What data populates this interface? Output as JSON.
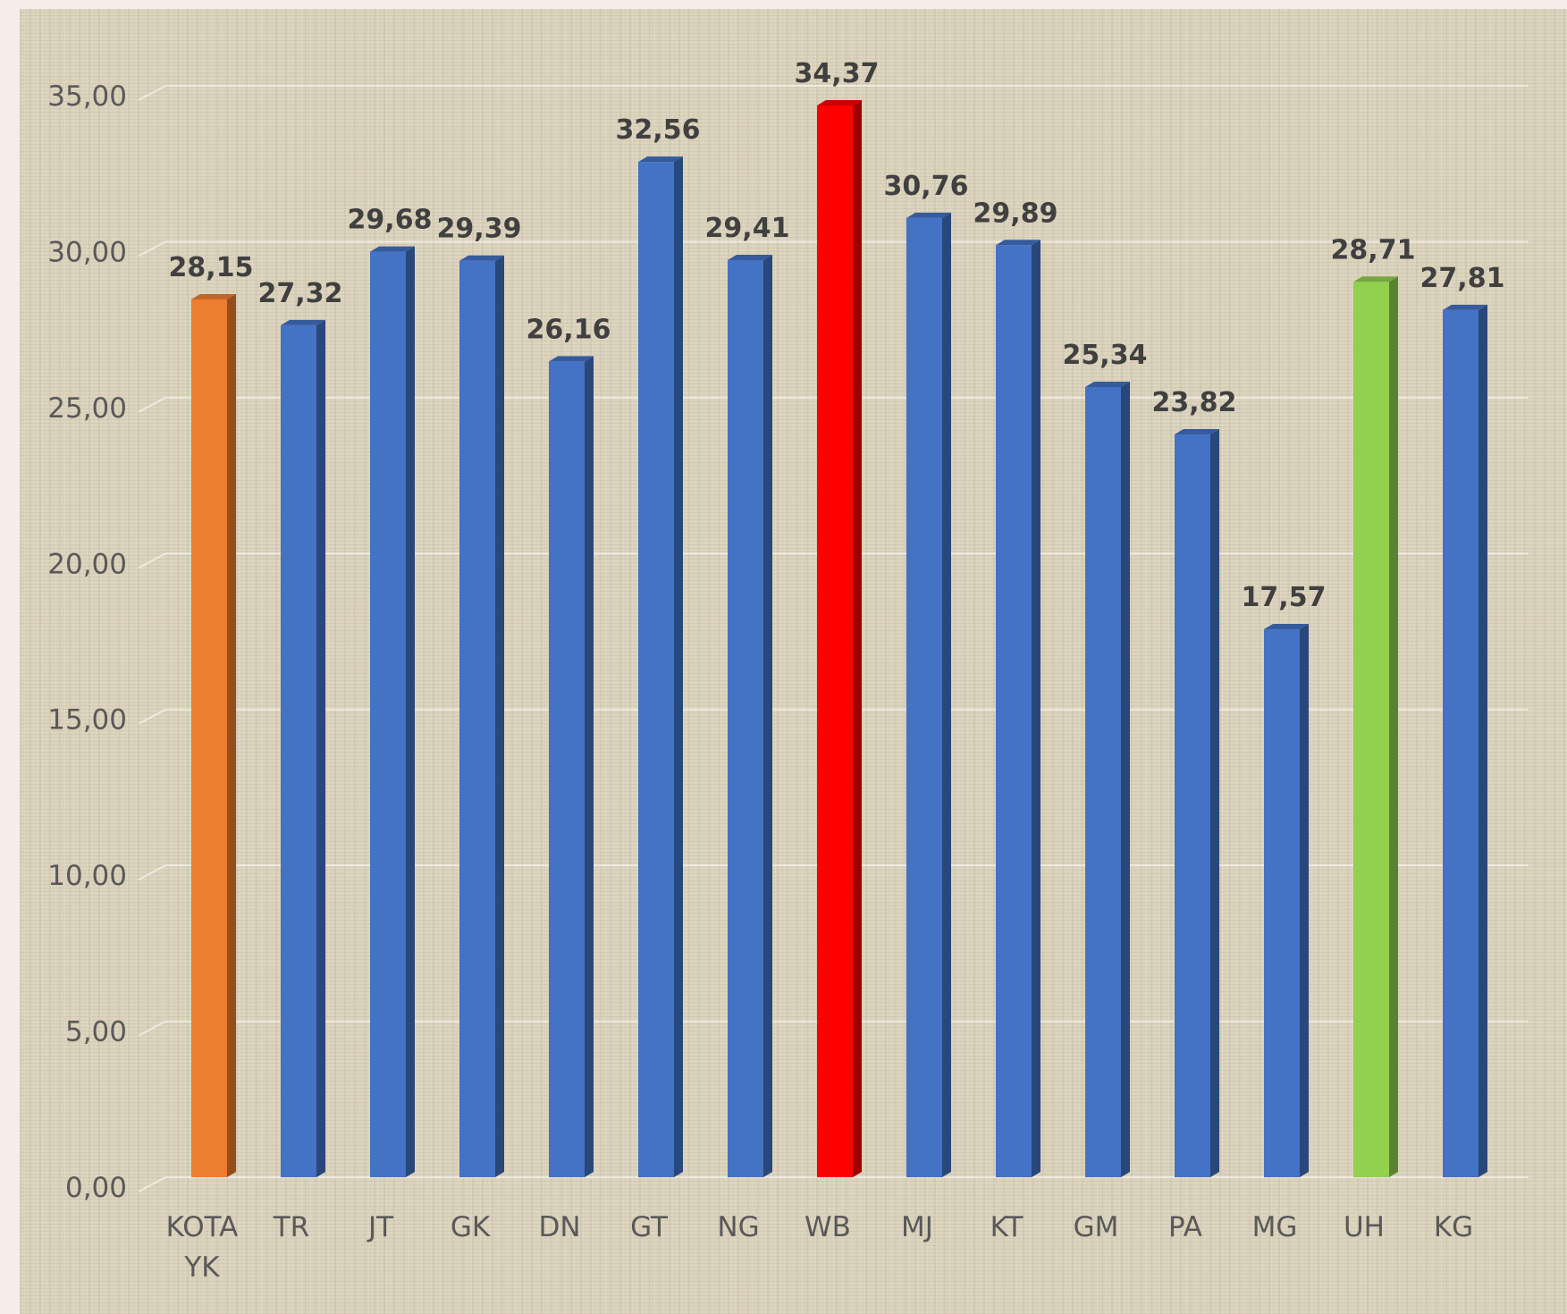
{
  "chart_data": {
    "type": "bar",
    "categories": [
      "KOTA YK",
      "TR",
      "JT",
      "GK",
      "DN",
      "GT",
      "NG",
      "WB",
      "MJ",
      "KT",
      "GM",
      "PA",
      "MG",
      "UH",
      "KG"
    ],
    "values": [
      28.15,
      27.32,
      29.68,
      29.39,
      26.16,
      32.56,
      29.41,
      34.37,
      30.76,
      29.89,
      25.34,
      23.82,
      17.57,
      28.71,
      27.81
    ],
    "data_labels": [
      "28,15",
      "27,32",
      "29,68",
      "29,39",
      "26,16",
      "32,56",
      "29,41",
      "34,37",
      "30,76",
      "29,89",
      "25,34",
      "23,82",
      "17,57",
      "28,71",
      "27,81"
    ],
    "bar_colors": [
      "#ed7d31",
      "#4472c4",
      "#4472c4",
      "#4472c4",
      "#4472c4",
      "#4472c4",
      "#4472c4",
      "#ff0000",
      "#4472c4",
      "#4472c4",
      "#4472c4",
      "#4472c4",
      "#4472c4",
      "#92d050",
      "#4472c4"
    ],
    "y_ticks": [
      "0,00",
      "5,00",
      "10,00",
      "15,00",
      "20,00",
      "25,00",
      "30,00",
      "35,00"
    ],
    "ylim": [
      0,
      35
    ],
    "grid": true,
    "style": "3d-column",
    "title": "",
    "xlabel": "",
    "ylabel": ""
  }
}
